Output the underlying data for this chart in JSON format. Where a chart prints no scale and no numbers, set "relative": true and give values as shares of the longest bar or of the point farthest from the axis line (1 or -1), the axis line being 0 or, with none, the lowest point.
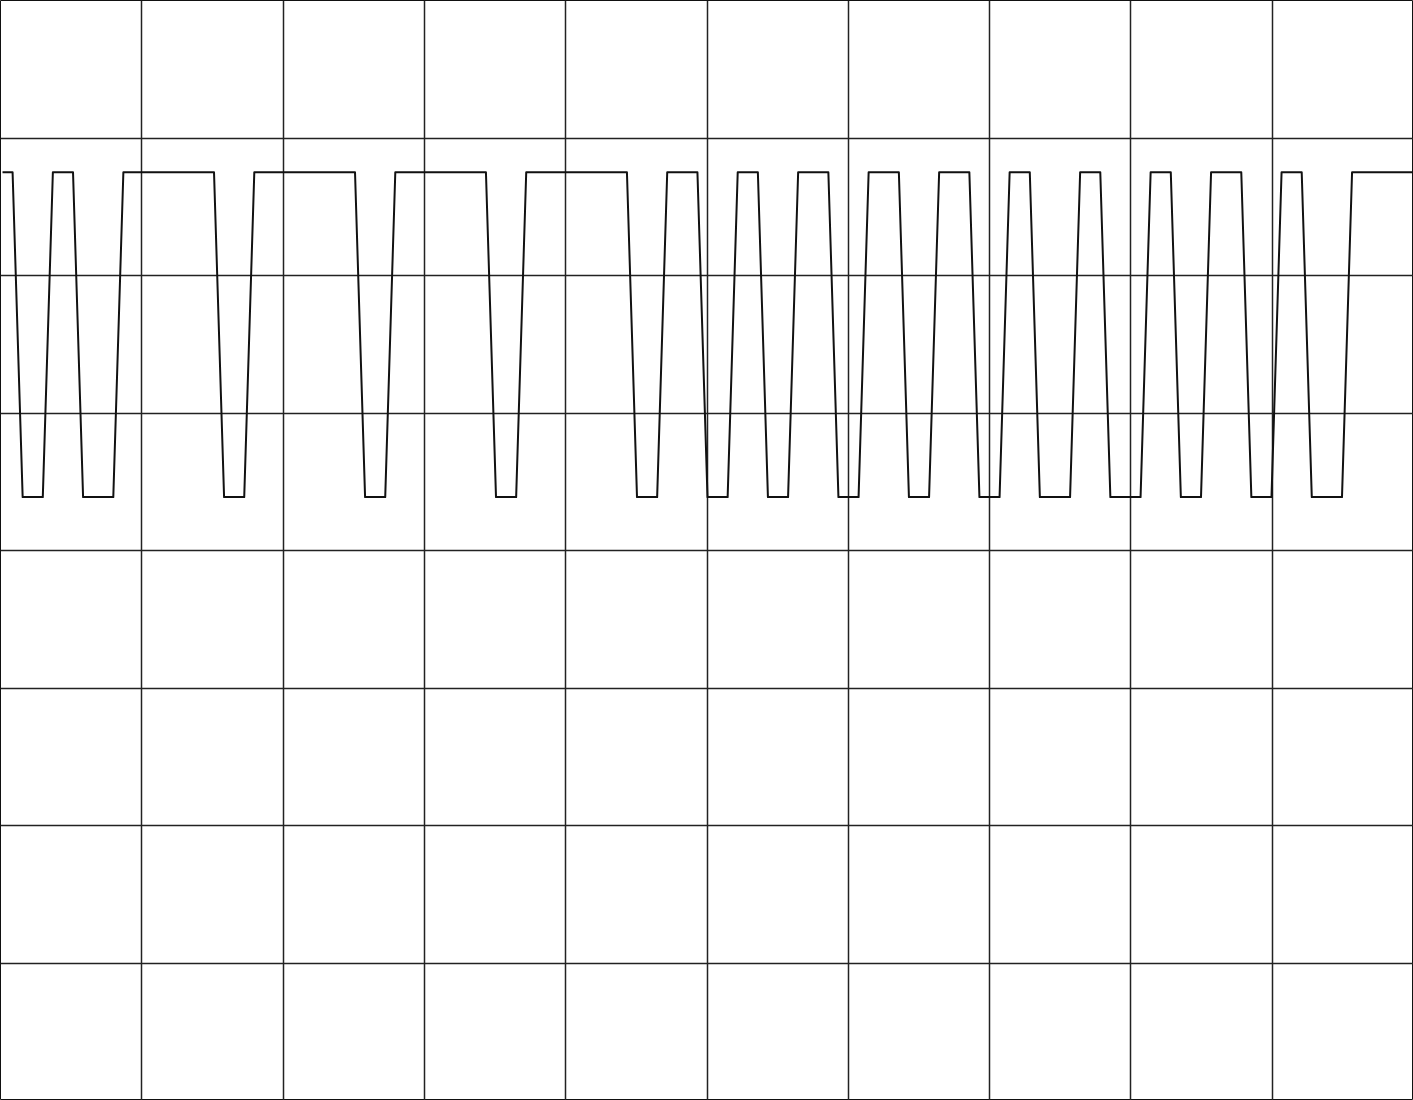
{
  "chart_data": {
    "type": "line",
    "relative": true,
    "grid": true,
    "categories": [
      null,
      null,
      null,
      null,
      null,
      null,
      null,
      null,
      null,
      null,
      null,
      null,
      null,
      null,
      null,
      null,
      null,
      null,
      null,
      null,
      null,
      null,
      null,
      null,
      null,
      null,
      null,
      null,
      null,
      null,
      null,
      null,
      null,
      null,
      null,
      null,
      null,
      null,
      null,
      null,
      null,
      null,
      null,
      null,
      null,
      null,
      null,
      null,
      null,
      null,
      null,
      null,
      null,
      null,
      null,
      null,
      null,
      null,
      null,
      null,
      null,
      null,
      null,
      null,
      null,
      null,
      null,
      null,
      null,
      null,
      null,
      null,
      null,
      null,
      null,
      null,
      null,
      null,
      null,
      null,
      null,
      null,
      null,
      null,
      null,
      null,
      null,
      null,
      null,
      null,
      null,
      null,
      null,
      null,
      null,
      null,
      null,
      null,
      null,
      null,
      null,
      null,
      null,
      null,
      null,
      null,
      null,
      null,
      null,
      null,
      null,
      null,
      null,
      null,
      null,
      null,
      null,
      null,
      null,
      null,
      null,
      null,
      null,
      null,
      null,
      null,
      null,
      null,
      null,
      null,
      null,
      null,
      null,
      null,
      null,
      null,
      null,
      null,
      null,
      null,
      null
    ],
    "series": [
      {
        "color": "#111111",
        "values": [
          1,
          1,
          0.65,
          0.65,
          0.65,
          1,
          1,
          1,
          0.65,
          0.65,
          0.65,
          0.65,
          1,
          1,
          1,
          1,
          1,
          1,
          1,
          1,
          1,
          1,
          0.65,
          0.65,
          0.65,
          1,
          1,
          1,
          1,
          1,
          1,
          1,
          1,
          1,
          1,
          1,
          0.65,
          0.65,
          0.65,
          1,
          1,
          1,
          1,
          1,
          1,
          1,
          1,
          1,
          1,
          0.65,
          0.65,
          0.65,
          1,
          1,
          1,
          1,
          1,
          1,
          1,
          1,
          1,
          1,
          1,
          0.65,
          0.65,
          0.65,
          1,
          1,
          1,
          1,
          0.65,
          0.65,
          0.65,
          1,
          1,
          1,
          0.65,
          0.65,
          0.65,
          1,
          1,
          1,
          1,
          0.65,
          0.65,
          0.65,
          1,
          1,
          1,
          1,
          0.65,
          0.65,
          0.65,
          1,
          1,
          1,
          1,
          0.65,
          0.65,
          0.65,
          1,
          1,
          1,
          0.65,
          0.65,
          0.65,
          0.65,
          1,
          1,
          1,
          0.65,
          0.65,
          0.65,
          0.65,
          1,
          1,
          1,
          0.65,
          0.65,
          0.65,
          1,
          1,
          1,
          1,
          0.65,
          0.65,
          0.65,
          1,
          1,
          1,
          0.65,
          0.65,
          0.65,
          0.65,
          1,
          1,
          1,
          1,
          1,
          1,
          1
        ]
      }
    ]
  }
}
